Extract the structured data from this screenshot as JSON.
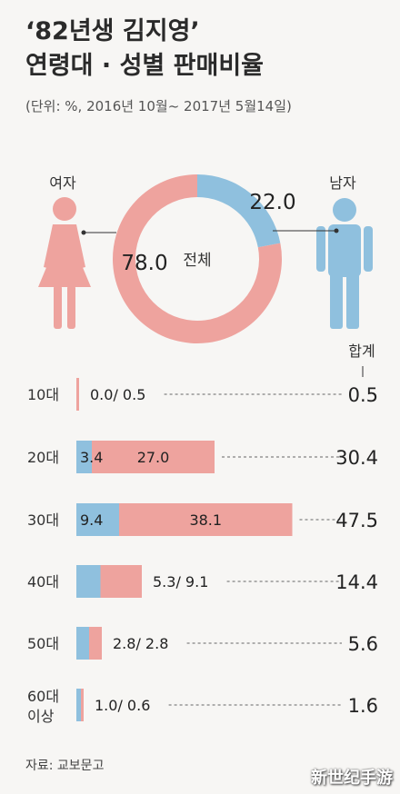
{
  "header": {
    "title_line1": "‘82년생 김지영’",
    "title_line2": "연령대 · 성별 판매비율",
    "subtitle": "(단위: %, 2016년 10월~ 2017년 5월14일)"
  },
  "source": "자료: 교보문고",
  "watermark": "新世纪手游",
  "colors": {
    "female": "#eea39e",
    "male": "#8fc0de",
    "figure_female": "#eea39e",
    "figure_male": "#8fc0de"
  },
  "chart_data": [
    {
      "type": "pie",
      "variant": "donut",
      "center_label": "전체",
      "slices": [
        {
          "name": "여자",
          "value": 78.0,
          "label": "78.0",
          "color": "#eea39e"
        },
        {
          "name": "남자",
          "value": 22.0,
          "label": "22.0",
          "color": "#8fc0de"
        }
      ]
    },
    {
      "type": "bar",
      "orientation": "horizontal",
      "stacked": true,
      "total_header": "합계",
      "categories": [
        "10대",
        "20대",
        "30대",
        "40대",
        "50대",
        "60대\n이상"
      ],
      "series": [
        {
          "key": "male",
          "values": [
            0.0,
            3.4,
            9.4,
            5.3,
            2.8,
            1.0
          ],
          "color": "#8fc0de"
        },
        {
          "key": "female",
          "values": [
            0.5,
            27.0,
            38.1,
            9.1,
            2.8,
            0.6
          ],
          "color": "#eea39e"
        }
      ],
      "totals": [
        0.5,
        30.4,
        47.5,
        14.4,
        5.6,
        1.6
      ],
      "labels": [
        {
          "text": "0.0/ 0.5",
          "mode": "outside"
        },
        {
          "male": "3.4",
          "female": "27.0",
          "mode": "inside"
        },
        {
          "male": "9.4",
          "female": "38.1",
          "mode": "inside"
        },
        {
          "text": "5.3/ 9.1",
          "mode": "outside"
        },
        {
          "text": "2.8/ 2.8",
          "mode": "outside"
        },
        {
          "text": "1.0/ 0.6",
          "mode": "outside"
        }
      ],
      "total_labels": [
        "0.5",
        "30.4",
        "47.5",
        "14.4",
        "5.6",
        "1.6"
      ]
    }
  ]
}
